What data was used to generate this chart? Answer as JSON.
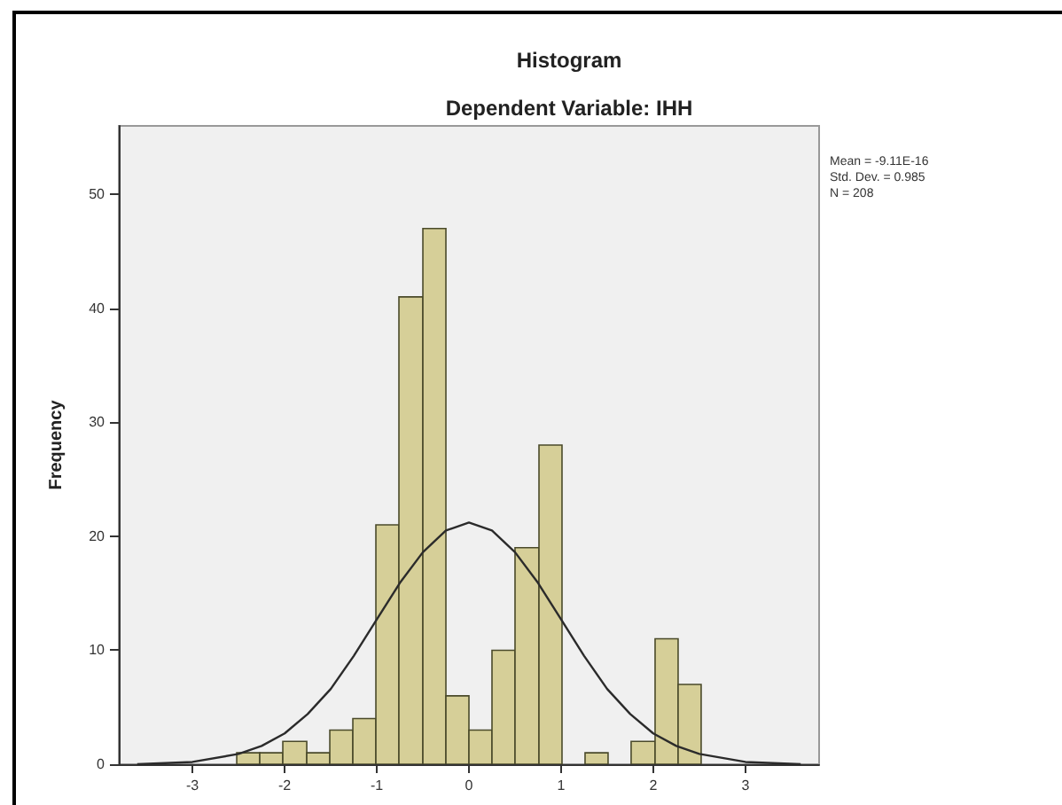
{
  "chart_data": {
    "type": "histogram",
    "title": "Histogram",
    "subtitle": "Dependent Variable: IHH",
    "ylabel": "Frequency",
    "bins": [
      -2.52,
      -2.27,
      -2.02,
      -1.76,
      -1.51,
      -1.26,
      -1.01,
      -0.76,
      -0.5,
      -0.25,
      0,
      0.25,
      0.5,
      0.76,
      1.01,
      1.26,
      1.51,
      1.76,
      2.02,
      2.27,
      2.52
    ],
    "series": [
      {
        "color": "#d6cf98",
        "values": [
          1,
          1,
          2,
          1,
          3,
          4,
          21,
          41,
          47,
          6,
          3,
          10,
          19,
          28,
          0,
          1,
          0,
          2,
          11,
          7
        ]
      },
      {
        "type": "line",
        "color": "#2b2b2b",
        "x": [
          -3.6,
          -3,
          -2.5,
          -2.25,
          -2,
          -1.75,
          -1.5,
          -1.25,
          -1,
          -0.75,
          -0.5,
          -0.25,
          0,
          0.25,
          0.5,
          0.75,
          1,
          1.25,
          1.5,
          1.75,
          2,
          2.25,
          2.5,
          3,
          3.6
        ],
        "values": [
          0,
          0.2,
          0.9,
          1.6,
          2.7,
          4.4,
          6.6,
          9.5,
          12.7,
          15.9,
          18.6,
          20.5,
          21.2,
          20.5,
          18.6,
          15.9,
          12.7,
          9.5,
          6.6,
          4.4,
          2.7,
          1.6,
          0.9,
          0.2,
          0
        ]
      }
    ],
    "xlim": [
      -3.8,
      3.8
    ],
    "xticks": [
      -3,
      -2,
      -1,
      0,
      1,
      2,
      3
    ],
    "ylim": [
      0,
      56
    ],
    "yticks": [
      0,
      10,
      20,
      30,
      40,
      50
    ],
    "grid": false,
    "marker": "none",
    "annotations": [
      "Mean = -9.11E-16",
      "Std. Dev. = 0.985",
      "N = 208"
    ]
  }
}
